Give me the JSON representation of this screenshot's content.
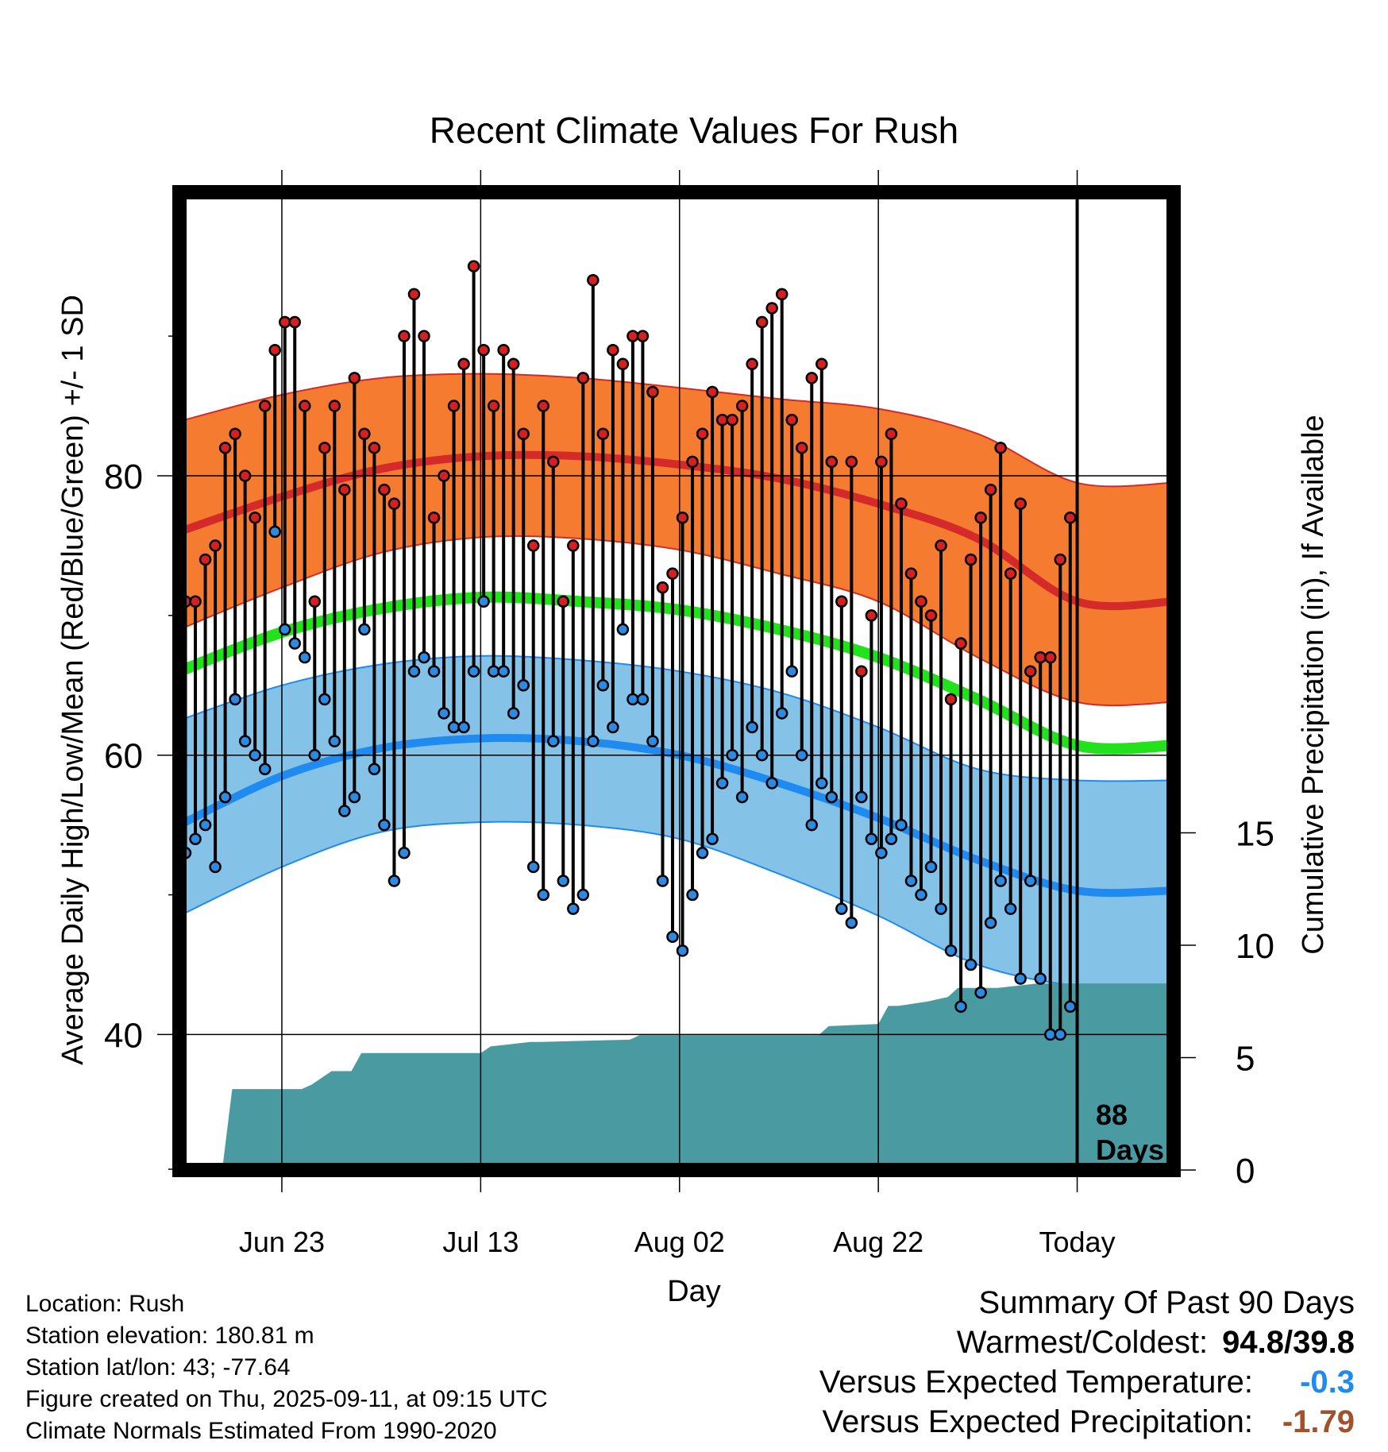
{
  "chart_data": {
    "type": "line",
    "title": "Recent Climate Values For Rush",
    "xlabel": "Day",
    "ylabel_left": "Average Daily High/Low/Mean (Red/Blue/Green) +/- 1 SD",
    "ylabel_right": "Cumulative Precipitation (in), If Available",
    "x_tick_labels": [
      "Jun 23",
      "Jul 13",
      "Aug 02",
      "Aug 22",
      "Today"
    ],
    "y_left_ticks": [
      "40",
      "60",
      "80"
    ],
    "y_right_ticks": [
      "0",
      "5",
      "10",
      "15"
    ],
    "ylim_left": [
      30.3,
      100.3
    ],
    "ylim_right": [
      0,
      43.5
    ],
    "x_range_days": [
      -90.3,
      9.7
    ],
    "annotation": {
      "line1": "88",
      "line2": "Days"
    },
    "colors": {
      "high_band": "#f47b30",
      "high_mean": "#d42a2a",
      "low_band": "#85c2e8",
      "low_mean": "#1f8af0",
      "mean": "#22e21c",
      "precip": "#4a9aa2",
      "high_point": "#d42020",
      "low_point": "#2d8ae0"
    },
    "normals": {
      "days": [
        -90.3,
        -80,
        -70,
        -60,
        -50,
        -40,
        -30,
        -20,
        -10,
        0,
        9.7
      ],
      "high_mean": [
        76.0,
        78.5,
        80.5,
        81.4,
        81.4,
        80.8,
        79.8,
        78.0,
        75.5,
        71.0,
        71.0
      ],
      "high_plus_sd": [
        83.9,
        85.8,
        87.0,
        87.3,
        87.0,
        86.3,
        85.5,
        84.8,
        83.0,
        79.5,
        79.5
      ],
      "high_minus_sd": [
        69.0,
        72.0,
        74.5,
        75.6,
        75.5,
        74.7,
        73.0,
        71.0,
        67.0,
        63.8,
        63.8
      ],
      "mean": [
        66.0,
        68.8,
        70.5,
        71.3,
        71.0,
        70.4,
        69.0,
        67.0,
        64.0,
        60.7,
        60.7
      ],
      "low_mean": [
        55.0,
        58.5,
        60.5,
        61.2,
        61.0,
        60.0,
        58.0,
        55.5,
        52.5,
        50.3,
        50.3
      ],
      "low_plus_sd": [
        62.5,
        65.0,
        66.5,
        67.1,
        66.8,
        66.0,
        64.5,
        62.0,
        59.0,
        58.2,
        58.2
      ],
      "low_minus_sd": [
        48.5,
        52.0,
        54.5,
        55.2,
        55.0,
        54.0,
        51.5,
        48.5,
        45.0,
        43.5,
        43.5
      ]
    },
    "daily_high": [
      71,
      71,
      74,
      75,
      82,
      83,
      80,
      77,
      85,
      89,
      91,
      91,
      85,
      71,
      82,
      85,
      79,
      87,
      83,
      82,
      79,
      78,
      90,
      93,
      90,
      77,
      80,
      85,
      88,
      95,
      89,
      85,
      89,
      88,
      83,
      75,
      85,
      81,
      71,
      75,
      87,
      94,
      83,
      89,
      88,
      90,
      90,
      86,
      72,
      73,
      77,
      81,
      83,
      86,
      84,
      84,
      85,
      88,
      91,
      92,
      93,
      84,
      82,
      87,
      88,
      81,
      71,
      81,
      66,
      70,
      81,
      83,
      78,
      73,
      71,
      70,
      75,
      64,
      68,
      74,
      77,
      79,
      82,
      73,
      78,
      66,
      67,
      67,
      74,
      77
    ],
    "daily_low": [
      53,
      54,
      55,
      52,
      57,
      64,
      61,
      60,
      59,
      76,
      69,
      68,
      67,
      60,
      64,
      61,
      56,
      57,
      69,
      59,
      55,
      51,
      53,
      66,
      67,
      66,
      63,
      62,
      62,
      66,
      71,
      66,
      66,
      63,
      65,
      52,
      50,
      61,
      51,
      49,
      50,
      61,
      65,
      62,
      69,
      64,
      64,
      61,
      51,
      47,
      46,
      50,
      53,
      54,
      58,
      60,
      57,
      62,
      60,
      58,
      63,
      66,
      60,
      55,
      58,
      57,
      49,
      48,
      57,
      54,
      53,
      54,
      55,
      51,
      50,
      52,
      49,
      46,
      42,
      45,
      43,
      48,
      51,
      49,
      44,
      51,
      44,
      40,
      40,
      42
    ],
    "cumulative_precip_in": {
      "days": [
        -86,
        -85,
        -84,
        -78,
        -77,
        -75,
        -73,
        -72,
        -71,
        -60,
        -59,
        -55,
        -54,
        -45,
        -44,
        -37,
        -36,
        -26,
        -25,
        -20,
        -19,
        -18,
        -15,
        -13,
        -12,
        -9,
        -8,
        -4,
        -3,
        9.7
      ],
      "values": [
        0,
        3.6,
        3.6,
        3.6,
        3.8,
        4.4,
        4.4,
        5.2,
        5.2,
        5.2,
        5.5,
        5.7,
        5.7,
        5.8,
        6.0,
        6.0,
        6.0,
        6.0,
        6.4,
        6.5,
        7.3,
        7.3,
        7.5,
        7.7,
        8.1,
        8.1,
        8.1,
        8.3,
        8.3,
        8.3
      ]
    }
  },
  "footer": {
    "location": "Location: Rush",
    "elevation": "Station elevation: 180.81 m",
    "latlon": "Station lat/lon: 43; -77.64",
    "created": "Figure created on Thu, 2025-09-11, at 09:15 UTC",
    "normals": "Climate Normals Estimated From 1990-2020"
  },
  "summary": {
    "heading": "Summary Of Past 90 Days",
    "warmest_coldest_label": "Warmest/Coldest:",
    "warmest_coldest_value": "94.8/39.8",
    "temp_label": "Versus Expected Temperature:",
    "temp_value": "-0.3",
    "temp_color": "#1f8af0",
    "precip_label": "Versus Expected Precipitation:",
    "precip_value": "-1.79",
    "precip_color": "#a0522d"
  }
}
